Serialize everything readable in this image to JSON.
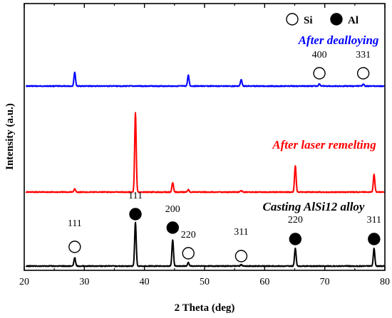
{
  "chart_data": {
    "type": "line",
    "xlabel": "2 Theta (deg)",
    "ylabel": "Intensity (a.u.)",
    "xlim": [
      20,
      80
    ],
    "x_ticks": [
      20,
      30,
      40,
      50,
      60,
      70,
      80
    ],
    "y_ticks_shown": false,
    "legend": {
      "placement": "top-right",
      "entries": [
        {
          "marker": "open-circle",
          "label": "Si"
        },
        {
          "marker": "filled-circle",
          "label": "Al"
        }
      ]
    },
    "series": [
      {
        "name": "After dealloying",
        "color": "#0000ff",
        "peaks": [
          {
            "x": 28.4,
            "height": 0.13
          },
          {
            "x": 47.3,
            "height": 0.1
          },
          {
            "x": 56.1,
            "height": 0.06
          },
          {
            "x": 69.1,
            "height": 0.02
          },
          {
            "x": 76.4,
            "height": 0.02
          }
        ]
      },
      {
        "name": "After laser remelting",
        "color": "#ff0000",
        "peaks": [
          {
            "x": 28.4,
            "height": 0.04
          },
          {
            "x": 38.5,
            "height": 1.0
          },
          {
            "x": 44.7,
            "height": 0.12
          },
          {
            "x": 47.3,
            "height": 0.03
          },
          {
            "x": 56.1,
            "height": 0.02
          },
          {
            "x": 65.1,
            "height": 0.33
          },
          {
            "x": 78.2,
            "height": 0.22
          }
        ]
      },
      {
        "name": "Casting AlSi12 alloy",
        "color": "#000000",
        "peaks": [
          {
            "x": 28.4,
            "height": 0.12
          },
          {
            "x": 38.5,
            "height": 0.62
          },
          {
            "x": 44.7,
            "height": 0.37
          },
          {
            "x": 47.3,
            "height": 0.05
          },
          {
            "x": 56.1,
            "height": 0.02
          },
          {
            "x": 65.1,
            "height": 0.25
          },
          {
            "x": 78.2,
            "height": 0.25
          }
        ]
      }
    ],
    "annotations": [
      {
        "series": "After dealloying",
        "text": "400",
        "marker": "open-circle",
        "x": 69.1
      },
      {
        "series": "After dealloying",
        "text": "331",
        "marker": "open-circle",
        "x": 76.4
      },
      {
        "series": "Casting AlSi12 alloy",
        "text": "111",
        "marker": "open-circle",
        "x": 28.4
      },
      {
        "series": "Casting AlSi12 alloy",
        "text": "111",
        "marker": "filled-circle",
        "x": 38.5
      },
      {
        "series": "Casting AlSi12 alloy",
        "text": "200",
        "marker": "filled-circle",
        "x": 44.7
      },
      {
        "series": "Casting AlSi12 alloy",
        "text": "220",
        "marker": "open-circle",
        "x": 47.3
      },
      {
        "series": "Casting AlSi12 alloy",
        "text": "311",
        "marker": "open-circle",
        "x": 56.1
      },
      {
        "series": "Casting AlSi12 alloy",
        "text": "220",
        "marker": "filled-circle",
        "x": 65.1
      },
      {
        "series": "Casting AlSi12 alloy",
        "text": "311",
        "marker": "filled-circle",
        "x": 78.2
      }
    ]
  }
}
